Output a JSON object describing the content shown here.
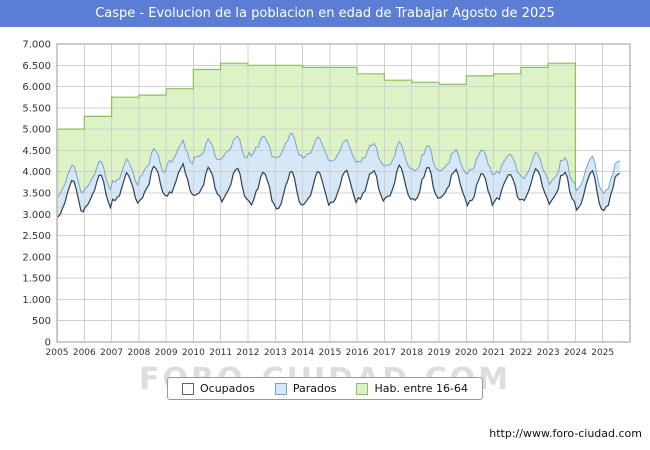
{
  "header": {
    "title": "Caspe - Evolucion de la poblacion en edad de Trabajar Agosto de 2025"
  },
  "footer": {
    "url": "http://www.foro-ciudad.com"
  },
  "watermark": "FORO-CIUDAD.COM",
  "legend": [
    {
      "label": "Ocupados",
      "fill": "#ffffff",
      "border": "#4d648c"
    },
    {
      "label": "Parados",
      "fill": "#d6e8f7",
      "border": "#7aa3cc"
    },
    {
      "label": "Hab. entre 16-64",
      "fill": "#ddf3c6",
      "border": "#8cbf62"
    }
  ],
  "colors": {
    "titlebar_bg": "#5b7dd3",
    "titlebar_text": "#ffffff",
    "grid": "#d0d0d0",
    "plot_border": "#9a9a9a",
    "axis_text": "#333333",
    "ocupados_line": "#2e4057",
    "ocupados_fill": "#ffffff",
    "parados_line": "#7aa3cc",
    "parados_fill": "#d6e8f7",
    "hab_line": "#8cbf62",
    "hab_fill": "#ddf3c6"
  },
  "chart_data": {
    "type": "area",
    "title": "Caspe - Evolucion de la poblacion en edad de Trabajar Agosto de 2025",
    "xlabel": "",
    "ylabel": "",
    "ylim": [
      0,
      7000
    ],
    "ytick_step": 500,
    "grid": true,
    "legend_position": "bottom",
    "x_years": [
      2005,
      2006,
      2007,
      2008,
      2009,
      2010,
      2011,
      2012,
      2013,
      2014,
      2015,
      2016,
      2017,
      2018,
      2019,
      2020,
      2021,
      2022,
      2023,
      2024,
      2025
    ],
    "series_names": [
      "Ocupados",
      "Parados",
      "Hab. entre 16-64"
    ],
    "yearly": [
      {
        "year": 2005,
        "hab_16_64": 5000,
        "ocupados_min": 2950,
        "ocupados_max": 3750,
        "parados_avg": 420
      },
      {
        "year": 2006,
        "hab_16_64": 5300,
        "ocupados_min": 3150,
        "ocupados_max": 3850,
        "parados_avg": 380
      },
      {
        "year": 2007,
        "hab_16_64": 5750,
        "ocupados_min": 3250,
        "ocupados_max": 3900,
        "parados_avg": 380
      },
      {
        "year": 2008,
        "hab_16_64": 5800,
        "ocupados_min": 3350,
        "ocupados_max": 4050,
        "parados_avg": 480
      },
      {
        "year": 2009,
        "hab_16_64": 5950,
        "ocupados_min": 3400,
        "ocupados_max": 4100,
        "parados_avg": 650
      },
      {
        "year": 2010,
        "hab_16_64": 6400,
        "ocupados_min": 3350,
        "ocupados_max": 4000,
        "parados_avg": 780
      },
      {
        "year": 2011,
        "hab_16_64": 6550,
        "ocupados_min": 3300,
        "ocupados_max": 4000,
        "parados_avg": 880
      },
      {
        "year": 2012,
        "hab_16_64": 6500,
        "ocupados_min": 3200,
        "ocupados_max": 3950,
        "parados_avg": 1000
      },
      {
        "year": 2013,
        "hab_16_64": 6500,
        "ocupados_min": 3100,
        "ocupados_max": 3950,
        "parados_avg": 1050
      },
      {
        "year": 2014,
        "hab_16_64": 6450,
        "ocupados_min": 3200,
        "ocupados_max": 3950,
        "parados_avg": 950
      },
      {
        "year": 2015,
        "hab_16_64": 6450,
        "ocupados_min": 3250,
        "ocupados_max": 4000,
        "parados_avg": 850
      },
      {
        "year": 2016,
        "hab_16_64": 6300,
        "ocupados_min": 3300,
        "ocupados_max": 4000,
        "parados_avg": 750
      },
      {
        "year": 2017,
        "hab_16_64": 6150,
        "ocupados_min": 3300,
        "ocupados_max": 4050,
        "parados_avg": 650
      },
      {
        "year": 2018,
        "hab_16_64": 6100,
        "ocupados_min": 3300,
        "ocupados_max": 4050,
        "parados_avg": 600
      },
      {
        "year": 2019,
        "hab_16_64": 6050,
        "ocupados_min": 3300,
        "ocupados_max": 4000,
        "parados_avg": 550
      },
      {
        "year": 2020,
        "hab_16_64": 6250,
        "ocupados_min": 3200,
        "ocupados_max": 3900,
        "parados_avg": 650
      },
      {
        "year": 2021,
        "hab_16_64": 6300,
        "ocupados_min": 3250,
        "ocupados_max": 3950,
        "parados_avg": 550
      },
      {
        "year": 2022,
        "hab_16_64": 6450,
        "ocupados_min": 3300,
        "ocupados_max": 4000,
        "parados_avg": 450
      },
      {
        "year": 2023,
        "hab_16_64": 6550,
        "ocupados_min": 3200,
        "ocupados_max": 3950,
        "parados_avg": 400
      },
      {
        "year": 2024,
        "hab_16_64": null,
        "ocupados_min": 3100,
        "ocupados_max": 3950,
        "parados_avg": 400
      },
      {
        "year": 2025,
        "hab_16_64": null,
        "ocupados_min": 3100,
        "ocupados_max": 3950,
        "parados_avg": 350,
        "months": 8
      }
    ],
    "seasonality_note": "Ocupados and Parados oscillate seasonally between the yearly min/max (trough ~January, peak ~July); Parados is drawn stacked on top of Ocupados; Hab. entre 16-64 is an annual step series whose data ends at the start of 2024; 2025 data runs through August."
  }
}
